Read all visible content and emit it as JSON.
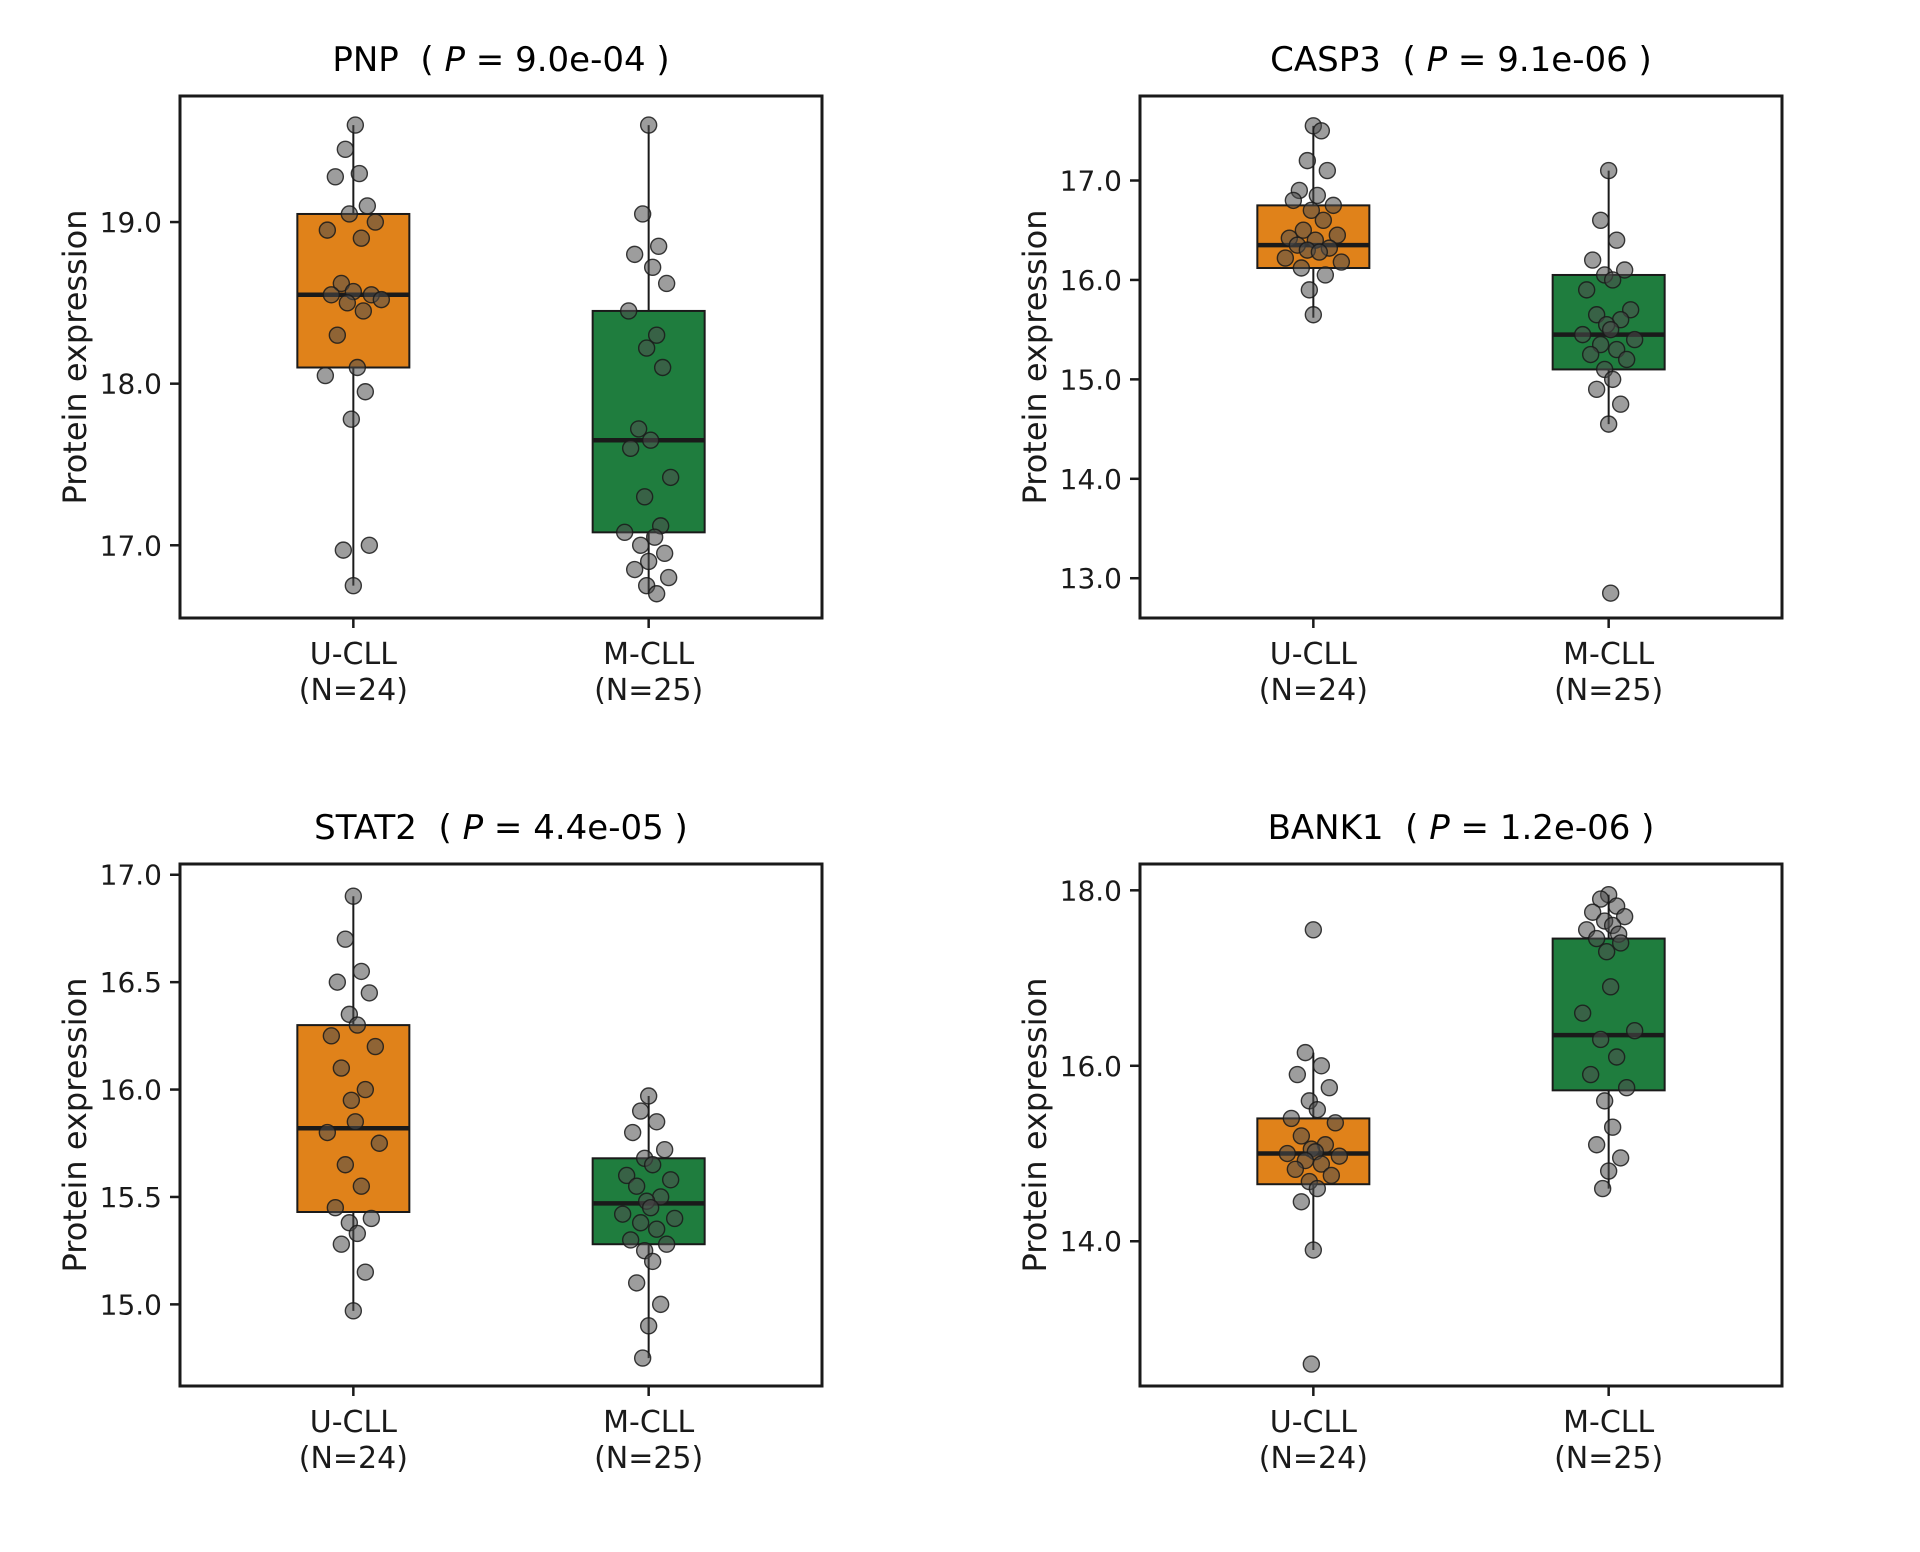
{
  "figure": {
    "ylabel": "Protein expression",
    "title_open": "  ( ",
    "p_symbol": "P",
    "title_eq": " = ",
    "title_close": " )",
    "colors": {
      "u_cll": "#E0821A",
      "m_cll": "#1F7D3E",
      "point": "#4D4D4D",
      "axis": "#1A1A1A"
    }
  },
  "chart_data": [
    {
      "type": "boxplot",
      "gene": "PNP",
      "p_value": "9.0e-04",
      "ylabel": "Protein expression",
      "ylim": [
        16.55,
        19.78
      ],
      "yticks": [
        {
          "v": 17.0,
          "label": "17.0"
        },
        {
          "v": 18.0,
          "label": "18.0"
        },
        {
          "v": 19.0,
          "label": "19.0"
        }
      ],
      "series": [
        {
          "name": "U-CLL",
          "n_label": "(N=24)",
          "color": "#E0821A",
          "box": {
            "low": 16.75,
            "q1": 18.1,
            "median": 18.55,
            "q3": 19.05,
            "high": 19.6
          },
          "points": [
            [
              2,
              19.6
            ],
            [
              -8,
              19.45
            ],
            [
              6,
              19.3
            ],
            [
              -18,
              19.28
            ],
            [
              14,
              19.1
            ],
            [
              -4,
              19.05
            ],
            [
              22,
              19.0
            ],
            [
              -26,
              18.95
            ],
            [
              8,
              18.9
            ],
            [
              -12,
              18.62
            ],
            [
              0,
              18.57
            ],
            [
              18,
              18.55
            ],
            [
              -22,
              18.55
            ],
            [
              28,
              18.52
            ],
            [
              -6,
              18.5
            ],
            [
              10,
              18.45
            ],
            [
              -16,
              18.3
            ],
            [
              4,
              18.1
            ],
            [
              -28,
              18.05
            ],
            [
              12,
              17.95
            ],
            [
              -2,
              17.78
            ],
            [
              16,
              17.0
            ],
            [
              -10,
              16.97
            ],
            [
              0,
              16.75
            ]
          ]
        },
        {
          "name": "M-CLL",
          "n_label": "(N=25)",
          "color": "#1F7D3E",
          "box": {
            "low": 16.7,
            "q1": 17.08,
            "median": 17.65,
            "q3": 18.45,
            "high": 19.6
          },
          "points": [
            [
              0,
              19.6
            ],
            [
              -6,
              19.05
            ],
            [
              10,
              18.85
            ],
            [
              -14,
              18.8
            ],
            [
              4,
              18.72
            ],
            [
              18,
              18.62
            ],
            [
              -20,
              18.45
            ],
            [
              8,
              18.3
            ],
            [
              -2,
              18.22
            ],
            [
              14,
              18.1
            ],
            [
              -10,
              17.72
            ],
            [
              2,
              17.65
            ],
            [
              -18,
              17.6
            ],
            [
              22,
              17.42
            ],
            [
              -4,
              17.3
            ],
            [
              12,
              17.12
            ],
            [
              -24,
              17.08
            ],
            [
              6,
              17.05
            ],
            [
              -8,
              17.0
            ],
            [
              16,
              16.95
            ],
            [
              0,
              16.9
            ],
            [
              -14,
              16.85
            ],
            [
              20,
              16.8
            ],
            [
              -2,
              16.75
            ],
            [
              8,
              16.7
            ]
          ]
        }
      ]
    },
    {
      "type": "boxplot",
      "gene": "CASP3",
      "p_value": "9.1e-06",
      "ylabel": "Protein expression",
      "ylim": [
        12.6,
        17.85
      ],
      "yticks": [
        {
          "v": 13.0,
          "label": "13.0"
        },
        {
          "v": 14.0,
          "label": "14.0"
        },
        {
          "v": 15.0,
          "label": "15.0"
        },
        {
          "v": 16.0,
          "label": "16.0"
        },
        {
          "v": 17.0,
          "label": "17.0"
        }
      ],
      "series": [
        {
          "name": "U-CLL",
          "n_label": "(N=24)",
          "color": "#E0821A",
          "box": {
            "low": 15.62,
            "q1": 16.12,
            "median": 16.35,
            "q3": 16.75,
            "high": 17.55
          },
          "points": [
            [
              0,
              17.55
            ],
            [
              8,
              17.5
            ],
            [
              -6,
              17.2
            ],
            [
              14,
              17.1
            ],
            [
              -14,
              16.9
            ],
            [
              4,
              16.85
            ],
            [
              -20,
              16.8
            ],
            [
              20,
              16.75
            ],
            [
              -2,
              16.7
            ],
            [
              10,
              16.6
            ],
            [
              -10,
              16.5
            ],
            [
              24,
              16.45
            ],
            [
              -24,
              16.42
            ],
            [
              2,
              16.4
            ],
            [
              -16,
              16.35
            ],
            [
              16,
              16.32
            ],
            [
              -6,
              16.3
            ],
            [
              6,
              16.28
            ],
            [
              -28,
              16.22
            ],
            [
              28,
              16.18
            ],
            [
              -12,
              16.12
            ],
            [
              12,
              16.05
            ],
            [
              -4,
              15.9
            ],
            [
              0,
              15.65
            ]
          ]
        },
        {
          "name": "M-CLL",
          "n_label": "(N=25)",
          "color": "#1F7D3E",
          "box": {
            "low": 14.55,
            "q1": 15.1,
            "median": 15.45,
            "q3": 16.05,
            "high": 17.1
          },
          "points": [
            [
              0,
              17.1
            ],
            [
              -8,
              16.6
            ],
            [
              8,
              16.4
            ],
            [
              -16,
              16.2
            ],
            [
              16,
              16.1
            ],
            [
              -4,
              16.05
            ],
            [
              4,
              16.0
            ],
            [
              -22,
              15.9
            ],
            [
              22,
              15.7
            ],
            [
              -12,
              15.65
            ],
            [
              12,
              15.6
            ],
            [
              -2,
              15.55
            ],
            [
              2,
              15.5
            ],
            [
              -26,
              15.45
            ],
            [
              26,
              15.4
            ],
            [
              -8,
              15.35
            ],
            [
              8,
              15.3
            ],
            [
              -18,
              15.25
            ],
            [
              18,
              15.2
            ],
            [
              -4,
              15.1
            ],
            [
              4,
              15.0
            ],
            [
              -12,
              14.9
            ],
            [
              12,
              14.75
            ],
            [
              0,
              14.55
            ],
            [
              2,
              12.85
            ]
          ]
        }
      ]
    },
    {
      "type": "boxplot",
      "gene": "STAT2",
      "p_value": "4.4e-05",
      "ylabel": "Protein expression",
      "ylim": [
        14.62,
        17.05
      ],
      "yticks": [
        {
          "v": 15.0,
          "label": "15.0"
        },
        {
          "v": 15.5,
          "label": "15.5"
        },
        {
          "v": 16.0,
          "label": "16.0"
        },
        {
          "v": 16.5,
          "label": "16.5"
        },
        {
          "v": 17.0,
          "label": "17.0"
        }
      ],
      "series": [
        {
          "name": "U-CLL",
          "n_label": "(N=24)",
          "color": "#E0821A",
          "box": {
            "low": 14.97,
            "q1": 15.43,
            "median": 15.82,
            "q3": 16.3,
            "high": 16.9
          },
          "points": [
            [
              0,
              16.9
            ],
            [
              -8,
              16.7
            ],
            [
              8,
              16.55
            ],
            [
              -16,
              16.5
            ],
            [
              16,
              16.45
            ],
            [
              -4,
              16.35
            ],
            [
              4,
              16.3
            ],
            [
              -22,
              16.25
            ],
            [
              22,
              16.2
            ],
            [
              -12,
              16.1
            ],
            [
              12,
              16.0
            ],
            [
              -2,
              15.95
            ],
            [
              2,
              15.85
            ],
            [
              -26,
              15.8
            ],
            [
              26,
              15.75
            ],
            [
              -8,
              15.65
            ],
            [
              8,
              15.55
            ],
            [
              -18,
              15.45
            ],
            [
              18,
              15.4
            ],
            [
              -4,
              15.38
            ],
            [
              4,
              15.33
            ],
            [
              -12,
              15.28
            ],
            [
              12,
              15.15
            ],
            [
              0,
              14.97
            ]
          ]
        },
        {
          "name": "M-CLL",
          "n_label": "(N=25)",
          "color": "#1F7D3E",
          "box": {
            "low": 14.75,
            "q1": 15.28,
            "median": 15.47,
            "q3": 15.68,
            "high": 15.97
          },
          "points": [
            [
              0,
              15.97
            ],
            [
              -8,
              15.9
            ],
            [
              8,
              15.85
            ],
            [
              -16,
              15.8
            ],
            [
              16,
              15.72
            ],
            [
              -4,
              15.68
            ],
            [
              4,
              15.65
            ],
            [
              -22,
              15.6
            ],
            [
              22,
              15.58
            ],
            [
              -12,
              15.55
            ],
            [
              12,
              15.5
            ],
            [
              -2,
              15.48
            ],
            [
              2,
              15.45
            ],
            [
              -26,
              15.42
            ],
            [
              26,
              15.4
            ],
            [
              -8,
              15.38
            ],
            [
              8,
              15.35
            ],
            [
              -18,
              15.3
            ],
            [
              18,
              15.28
            ],
            [
              -4,
              15.25
            ],
            [
              4,
              15.2
            ],
            [
              -12,
              15.1
            ],
            [
              12,
              15.0
            ],
            [
              0,
              14.9
            ],
            [
              -6,
              14.75
            ]
          ]
        }
      ]
    },
    {
      "type": "boxplot",
      "gene": "BANK1",
      "p_value": "1.2e-06",
      "ylabel": "Protein expression",
      "ylim": [
        12.35,
        18.3
      ],
      "yticks": [
        {
          "v": 14.0,
          "label": "14.0"
        },
        {
          "v": 16.0,
          "label": "16.0"
        },
        {
          "v": 18.0,
          "label": "18.0"
        }
      ],
      "series": [
        {
          "name": "U-CLL",
          "n_label": "(N=24)",
          "color": "#E0821A",
          "box": {
            "low": 13.9,
            "q1": 14.65,
            "median": 15.0,
            "q3": 15.4,
            "high": 16.15
          },
          "points": [
            [
              0,
              17.55
            ],
            [
              -8,
              16.15
            ],
            [
              8,
              16.0
            ],
            [
              -16,
              15.9
            ],
            [
              16,
              15.75
            ],
            [
              -4,
              15.6
            ],
            [
              4,
              15.5
            ],
            [
              -22,
              15.4
            ],
            [
              22,
              15.35
            ],
            [
              -12,
              15.2
            ],
            [
              12,
              15.1
            ],
            [
              -2,
              15.05
            ],
            [
              2,
              15.02
            ],
            [
              -26,
              15.0
            ],
            [
              26,
              14.97
            ],
            [
              -8,
              14.92
            ],
            [
              8,
              14.88
            ],
            [
              -18,
              14.82
            ],
            [
              18,
              14.75
            ],
            [
              -4,
              14.68
            ],
            [
              4,
              14.6
            ],
            [
              -12,
              14.45
            ],
            [
              0,
              13.9
            ],
            [
              -2,
              12.6
            ]
          ]
        },
        {
          "name": "M-CLL",
          "n_label": "(N=25)",
          "color": "#1F7D3E",
          "box": {
            "low": 14.6,
            "q1": 15.72,
            "median": 16.35,
            "q3": 17.45,
            "high": 17.95
          },
          "points": [
            [
              0,
              17.95
            ],
            [
              -8,
              17.9
            ],
            [
              8,
              17.82
            ],
            [
              -16,
              17.75
            ],
            [
              16,
              17.7
            ],
            [
              -4,
              17.65
            ],
            [
              4,
              17.6
            ],
            [
              -22,
              17.55
            ],
            [
              10,
              17.5
            ],
            [
              -12,
              17.45
            ],
            [
              12,
              17.4
            ],
            [
              -2,
              17.3
            ],
            [
              2,
              16.9
            ],
            [
              -26,
              16.6
            ],
            [
              26,
              16.4
            ],
            [
              -8,
              16.3
            ],
            [
              8,
              16.1
            ],
            [
              -18,
              15.9
            ],
            [
              18,
              15.75
            ],
            [
              -4,
              15.6
            ],
            [
              4,
              15.3
            ],
            [
              -12,
              15.1
            ],
            [
              12,
              14.95
            ],
            [
              0,
              14.8
            ],
            [
              -6,
              14.6
            ]
          ]
        }
      ]
    }
  ]
}
